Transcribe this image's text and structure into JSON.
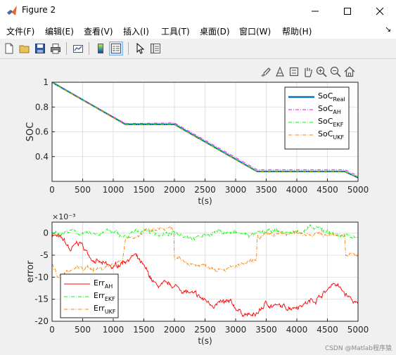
{
  "window": {
    "title": "Figure 2"
  },
  "menu": [
    "文件(F)",
    "编辑(E)",
    "查看(V)",
    "插入(I)",
    "工具(T)",
    "桌面(D)",
    "窗口(W)",
    "帮助(H)"
  ],
  "menu_arrow": "↘",
  "watermark": "CSDN @Matlab程序猿",
  "toolbar_icons": [
    "new-figure-icon",
    "open-icon",
    "save-icon",
    "print-icon",
    "link-plot-icon",
    "colorbar-icon",
    "legend-icon",
    "pointer-icon",
    "property-inspector-icon"
  ],
  "axes_toolbar_icons": [
    "brush-icon",
    "data-tips-icon",
    "pan-icon",
    "zoom-in-icon",
    "zoom-out-icon",
    "home-icon"
  ],
  "chart_data": [
    {
      "type": "line",
      "xlabel": "t(s)",
      "ylabel": "SOC",
      "xlim": [
        0,
        5000
      ],
      "ylim": [
        0.2,
        1.0
      ],
      "xticks": [
        0,
        500,
        1000,
        1500,
        2000,
        2500,
        3000,
        3500,
        4000,
        4500,
        5000
      ],
      "yticks": [
        0.4,
        0.6,
        0.8,
        1
      ],
      "grid": true,
      "legend_position": "top-right",
      "series": [
        {
          "name": "SoC_Real",
          "label_main": "SoC",
          "label_sub": "Real",
          "color": "#0072bd",
          "style": "solid",
          "x": [
            0,
            1200,
            2000,
            3350,
            4780,
            5000
          ],
          "y": [
            1.0,
            0.66,
            0.66,
            0.28,
            0.28,
            0.23
          ]
        },
        {
          "name": "SoC_AH",
          "label_main": "SoC",
          "label_sub": "AH",
          "color": "#ff00ff",
          "style": "dashdot",
          "x": [
            0,
            1200,
            2000,
            3350,
            4780,
            5000
          ],
          "y": [
            1.0,
            0.667,
            0.672,
            0.295,
            0.295,
            0.245
          ]
        },
        {
          "name": "SoC_EKF",
          "label_main": "SoC",
          "label_sub": "EKF",
          "color": "#00ff00",
          "style": "dashdot",
          "x": [
            0,
            1200,
            2000,
            3350,
            4780,
            5000
          ],
          "y": [
            1.0,
            0.66,
            0.66,
            0.28,
            0.28,
            0.235
          ]
        },
        {
          "name": "SoC_UKF",
          "label_main": "SoC",
          "label_sub": "UKF",
          "color": "#ff8000",
          "style": "dashdot",
          "x": [
            0,
            1200,
            2000,
            3350,
            4780,
            5000
          ],
          "y": [
            0.995,
            0.655,
            0.655,
            0.275,
            0.275,
            0.228
          ]
        }
      ]
    },
    {
      "type": "line",
      "xlabel": "t(s)",
      "ylabel": "error",
      "exponent_label": "×10⁻³",
      "xlim": [
        0,
        5000
      ],
      "ylim": [
        -20,
        2.5
      ],
      "xticks": [
        0,
        500,
        1000,
        1500,
        2000,
        2500,
        3000,
        3500,
        4000,
        4500,
        5000
      ],
      "yticks": [
        -20,
        -15,
        -10,
        -5,
        0
      ],
      "grid": true,
      "legend_position": "bottom-left",
      "series": [
        {
          "name": "Err_AH",
          "label_main": "Err",
          "label_sub": "AH",
          "color": "#ff0000",
          "style": "solid",
          "x": [
            0,
            200,
            300,
            450,
            600,
            800,
            1000,
            1200,
            1350,
            1500,
            1700,
            2000,
            2300,
            2600,
            2900,
            3100,
            3300,
            3500,
            3800,
            4100,
            4300,
            4500,
            4600,
            4800,
            5000
          ],
          "y": [
            0,
            -2,
            -4,
            -2,
            -5,
            -7,
            -8,
            -6,
            -5,
            -8,
            -12,
            -12,
            -14,
            -16,
            -16,
            -18,
            -19,
            -16,
            -17,
            -16,
            -15,
            -13,
            -11,
            -14,
            -16.5
          ],
          "noise": 0.7
        },
        {
          "name": "Err_EKF",
          "label_main": "Err",
          "label_sub": "EKF",
          "color": "#00ff00",
          "style": "dashdot",
          "x": [
            0,
            300,
            600,
            900,
            1200,
            1500,
            1800,
            2100,
            2400,
            2700,
            3000,
            3300,
            3600,
            3900,
            4200,
            4500,
            4800,
            5000
          ],
          "y": [
            0,
            0.5,
            -0.5,
            0.5,
            -1,
            1,
            -0.5,
            0,
            -1,
            0.5,
            0,
            -0.5,
            0.5,
            0,
            1,
            0.5,
            -1,
            -0.5
          ],
          "noise": 0.6
        },
        {
          "name": "Err_UKF",
          "label_main": "Err",
          "label_sub": "UKF",
          "color": "#ff8000",
          "style": "dashdot",
          "x": [
            0,
            100,
            200,
            400,
            600,
            800,
            1000,
            1150,
            1200,
            1500,
            1800,
            1990,
            2000,
            2300,
            2600,
            2900,
            3200,
            3340,
            3350,
            3600,
            4000,
            4300,
            4500,
            4780,
            4800,
            5000
          ],
          "y": [
            -7,
            -10,
            -9,
            -8,
            -8,
            -8,
            -7,
            -6,
            -1,
            0,
            1,
            0.5,
            -6,
            -7,
            -7.5,
            -8,
            -7,
            -6.5,
            -1,
            -0.5,
            0,
            0,
            -0.5,
            0,
            -5,
            -5
          ],
          "noise": 0.6
        }
      ]
    }
  ]
}
